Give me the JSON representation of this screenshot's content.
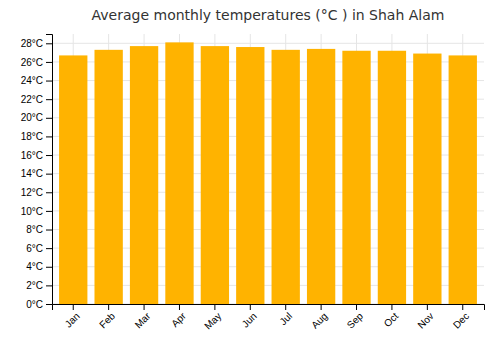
{
  "chart_data": {
    "type": "bar",
    "title": "Average monthly temperatures (°C ) in Shah Alam",
    "categories": [
      "Jan",
      "Feb",
      "Mar",
      "Apr",
      "May",
      "Jun",
      "Jul",
      "Aug",
      "Sep",
      "Oct",
      "Nov",
      "Dec"
    ],
    "values": [
      26.7,
      27.3,
      27.7,
      28.1,
      27.7,
      27.6,
      27.3,
      27.4,
      27.2,
      27.2,
      26.9,
      26.7
    ],
    "color": "#FFB300",
    "ylim": [
      0,
      29
    ],
    "yticks": [
      {
        "value": 0,
        "label": "0°C"
      },
      {
        "value": 2,
        "label": "2°C"
      },
      {
        "value": 4,
        "label": "4°C"
      },
      {
        "value": 6,
        "label": "6°C"
      },
      {
        "value": 8,
        "label": "8°C"
      },
      {
        "value": 10,
        "label": "10°C"
      },
      {
        "value": 12,
        "label": "12°C"
      },
      {
        "value": 14,
        "label": "14°C"
      },
      {
        "value": 16,
        "label": "16°C"
      },
      {
        "value": 18,
        "label": "18°C"
      },
      {
        "value": 20,
        "label": "20°C"
      },
      {
        "value": 22,
        "label": "22°C"
      },
      {
        "value": 24,
        "label": "24°C"
      },
      {
        "value": 26,
        "label": "26°C"
      },
      {
        "value": 28,
        "label": "28°C"
      }
    ],
    "grid": true
  }
}
